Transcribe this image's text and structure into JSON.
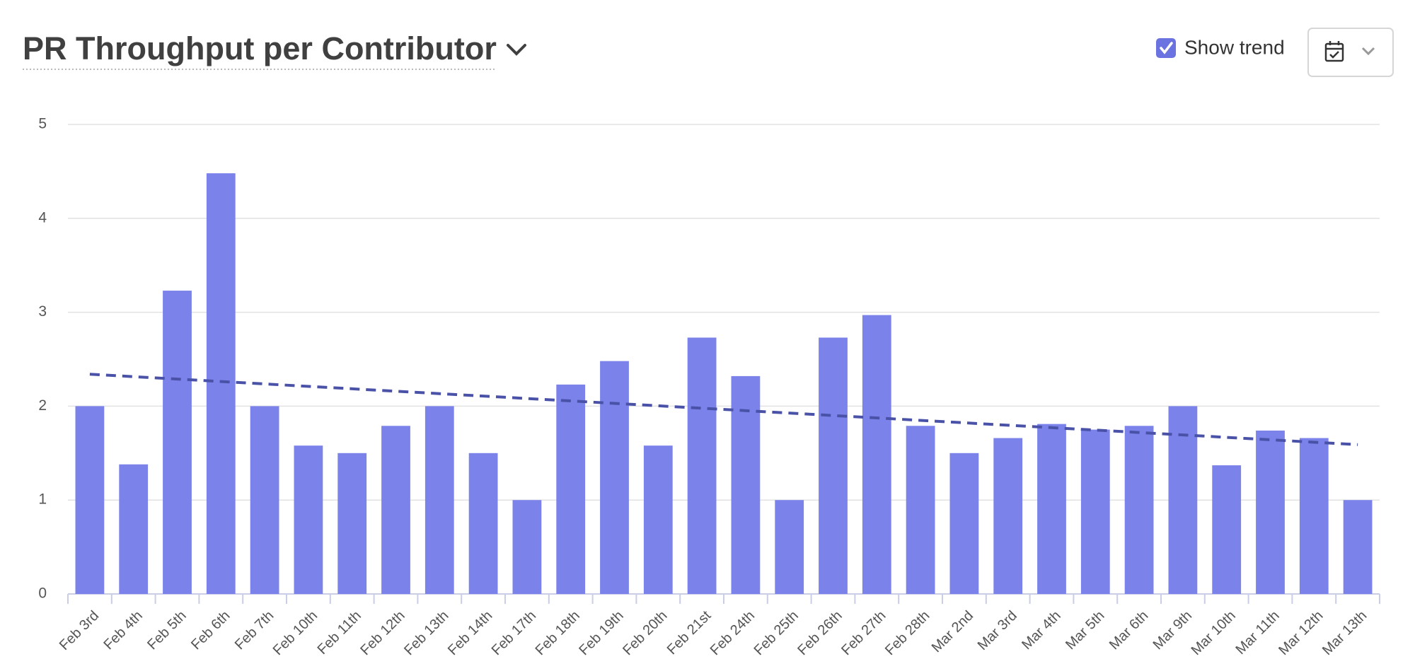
{
  "chart_data": {
    "type": "bar",
    "title": "PR Throughput per Contributor",
    "show_trend_label": "Show trend",
    "categories": [
      "Feb 3rd",
      "Feb 4th",
      "Feb 5th",
      "Feb 6th",
      "Feb 7th",
      "Feb 10th",
      "Feb 11th",
      "Feb 12th",
      "Feb 13th",
      "Feb 14th",
      "Feb 17th",
      "Feb 18th",
      "Feb 19th",
      "Feb 20th",
      "Feb 21st",
      "Feb 24th",
      "Feb 25th",
      "Feb 26th",
      "Feb 27th",
      "Feb 28th",
      "Mar 2nd",
      "Mar 3rd",
      "Mar 4th",
      "Mar 5th",
      "Mar 6th",
      "Mar 9th",
      "Mar 10th",
      "Mar 11th",
      "Mar 12th",
      "Mar 13th"
    ],
    "values": [
      2,
      1.38,
      3.23,
      4.48,
      2,
      1.58,
      1.5,
      1.79,
      2,
      1.5,
      1,
      2.23,
      2.48,
      1.58,
      2.73,
      2.32,
      1,
      2.73,
      2.97,
      1.79,
      1.5,
      1.66,
      1.81,
      1.75,
      1.79,
      2,
      1.37,
      1.74,
      1.66,
      1
    ],
    "color": "#7b83eb",
    "trend": {
      "values": [
        2.34,
        1.59
      ],
      "color": "#4a52a8"
    },
    "ylim": [
      0,
      5
    ],
    "yticks": [
      0,
      1,
      2,
      3,
      4,
      5
    ],
    "grid": true
  }
}
